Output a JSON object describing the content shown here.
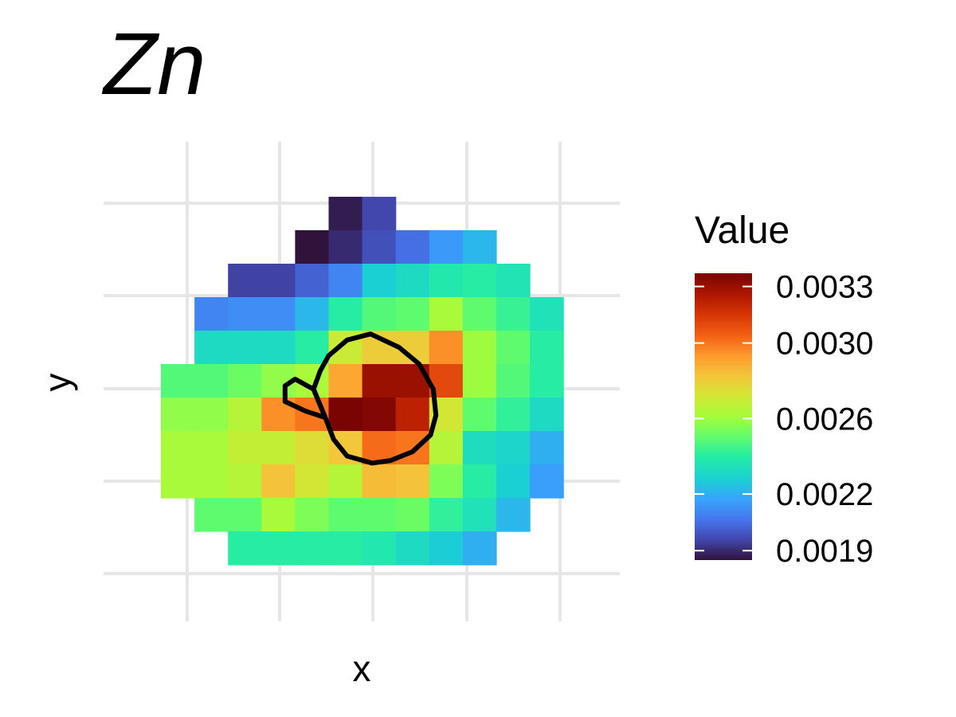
{
  "chart_data": {
    "type": "heatmap",
    "title": "Zn",
    "xlabel": "x",
    "ylabel": "y",
    "grid": true,
    "colormap": "turbo",
    "legend": {
      "title": "Value",
      "placement": "right",
      "range": [
        0.00185,
        0.00337
      ],
      "ticks": [
        0.0033,
        0.003,
        0.0026,
        0.0022,
        0.0019
      ],
      "tick_labels": [
        "0.0033",
        "0.0030",
        "0.0026",
        "0.0022",
        "0.0019"
      ]
    },
    "grid_cols": 12,
    "grid_rows": 11,
    "cells": [
      [
        null,
        null,
        null,
        null,
        null,
        0.00187,
        0.00196,
        null,
        null,
        null,
        null,
        null
      ],
      [
        null,
        null,
        null,
        null,
        0.00185,
        0.0019,
        0.00198,
        0.00205,
        0.00215,
        0.00222,
        null,
        null
      ],
      [
        null,
        null,
        0.00195,
        0.00195,
        0.00202,
        0.0021,
        0.00228,
        0.00232,
        0.00238,
        0.0024,
        0.00236,
        null
      ],
      [
        null,
        0.0021,
        0.00212,
        0.00212,
        0.00222,
        0.0024,
        0.00248,
        0.0025,
        0.00262,
        0.0025,
        0.00243,
        0.00235
      ],
      [
        null,
        0.00232,
        0.00232,
        0.00232,
        0.0024,
        0.0027,
        0.0028,
        0.0028,
        0.00295,
        0.0026,
        0.0025,
        0.0024
      ],
      [
        0.00248,
        0.00248,
        0.00252,
        0.00258,
        0.00262,
        0.0029,
        0.0033,
        0.0033,
        0.0031,
        0.0026,
        0.00248,
        0.0024
      ],
      [
        0.00258,
        0.00258,
        0.00265,
        0.00295,
        0.003,
        0.00337,
        0.00335,
        0.00322,
        0.00272,
        0.0025,
        0.00242,
        0.00232
      ],
      [
        0.00262,
        0.00262,
        0.00268,
        0.00268,
        0.00275,
        0.00282,
        0.00302,
        0.003,
        0.00265,
        0.00233,
        0.0023,
        0.0022
      ],
      [
        0.00262,
        0.00262,
        0.00265,
        0.00283,
        0.00272,
        0.00265,
        0.00285,
        0.00283,
        0.00255,
        0.0024,
        0.00228,
        0.00216
      ],
      [
        null,
        0.0025,
        0.0025,
        0.00262,
        0.00255,
        0.0025,
        0.0025,
        0.00252,
        0.00242,
        0.00235,
        0.00222,
        null
      ],
      [
        null,
        null,
        0.0024,
        0.0024,
        0.0024,
        0.0024,
        0.00238,
        0.00232,
        0.00227,
        0.0022,
        null,
        null
      ]
    ],
    "contours": [
      [
        [
          4.9,
          6.6
        ],
        [
          5.15,
          7.25
        ],
        [
          5.55,
          7.75
        ],
        [
          6.3,
          7.96
        ],
        [
          6.85,
          7.88
        ],
        [
          7.5,
          7.62
        ],
        [
          8.04,
          7.12
        ],
        [
          8.2,
          6.53
        ],
        [
          8.12,
          5.75
        ],
        [
          7.7,
          5.0
        ],
        [
          7.1,
          4.5
        ],
        [
          6.25,
          4.1
        ],
        [
          5.55,
          4.28
        ],
        [
          5.0,
          4.75
        ],
        [
          4.75,
          5.2
        ],
        [
          4.55,
          5.75
        ],
        [
          4.9,
          6.6
        ]
      ],
      [
        [
          4.9,
          6.6
        ],
        [
          4.55,
          5.75
        ],
        [
          4.55,
          5.75
        ],
        [
          4.0,
          5.45
        ],
        [
          3.7,
          5.65
        ],
        [
          3.7,
          6.12
        ],
        [
          4.3,
          6.4
        ],
        [
          4.9,
          6.6
        ]
      ]
    ]
  }
}
